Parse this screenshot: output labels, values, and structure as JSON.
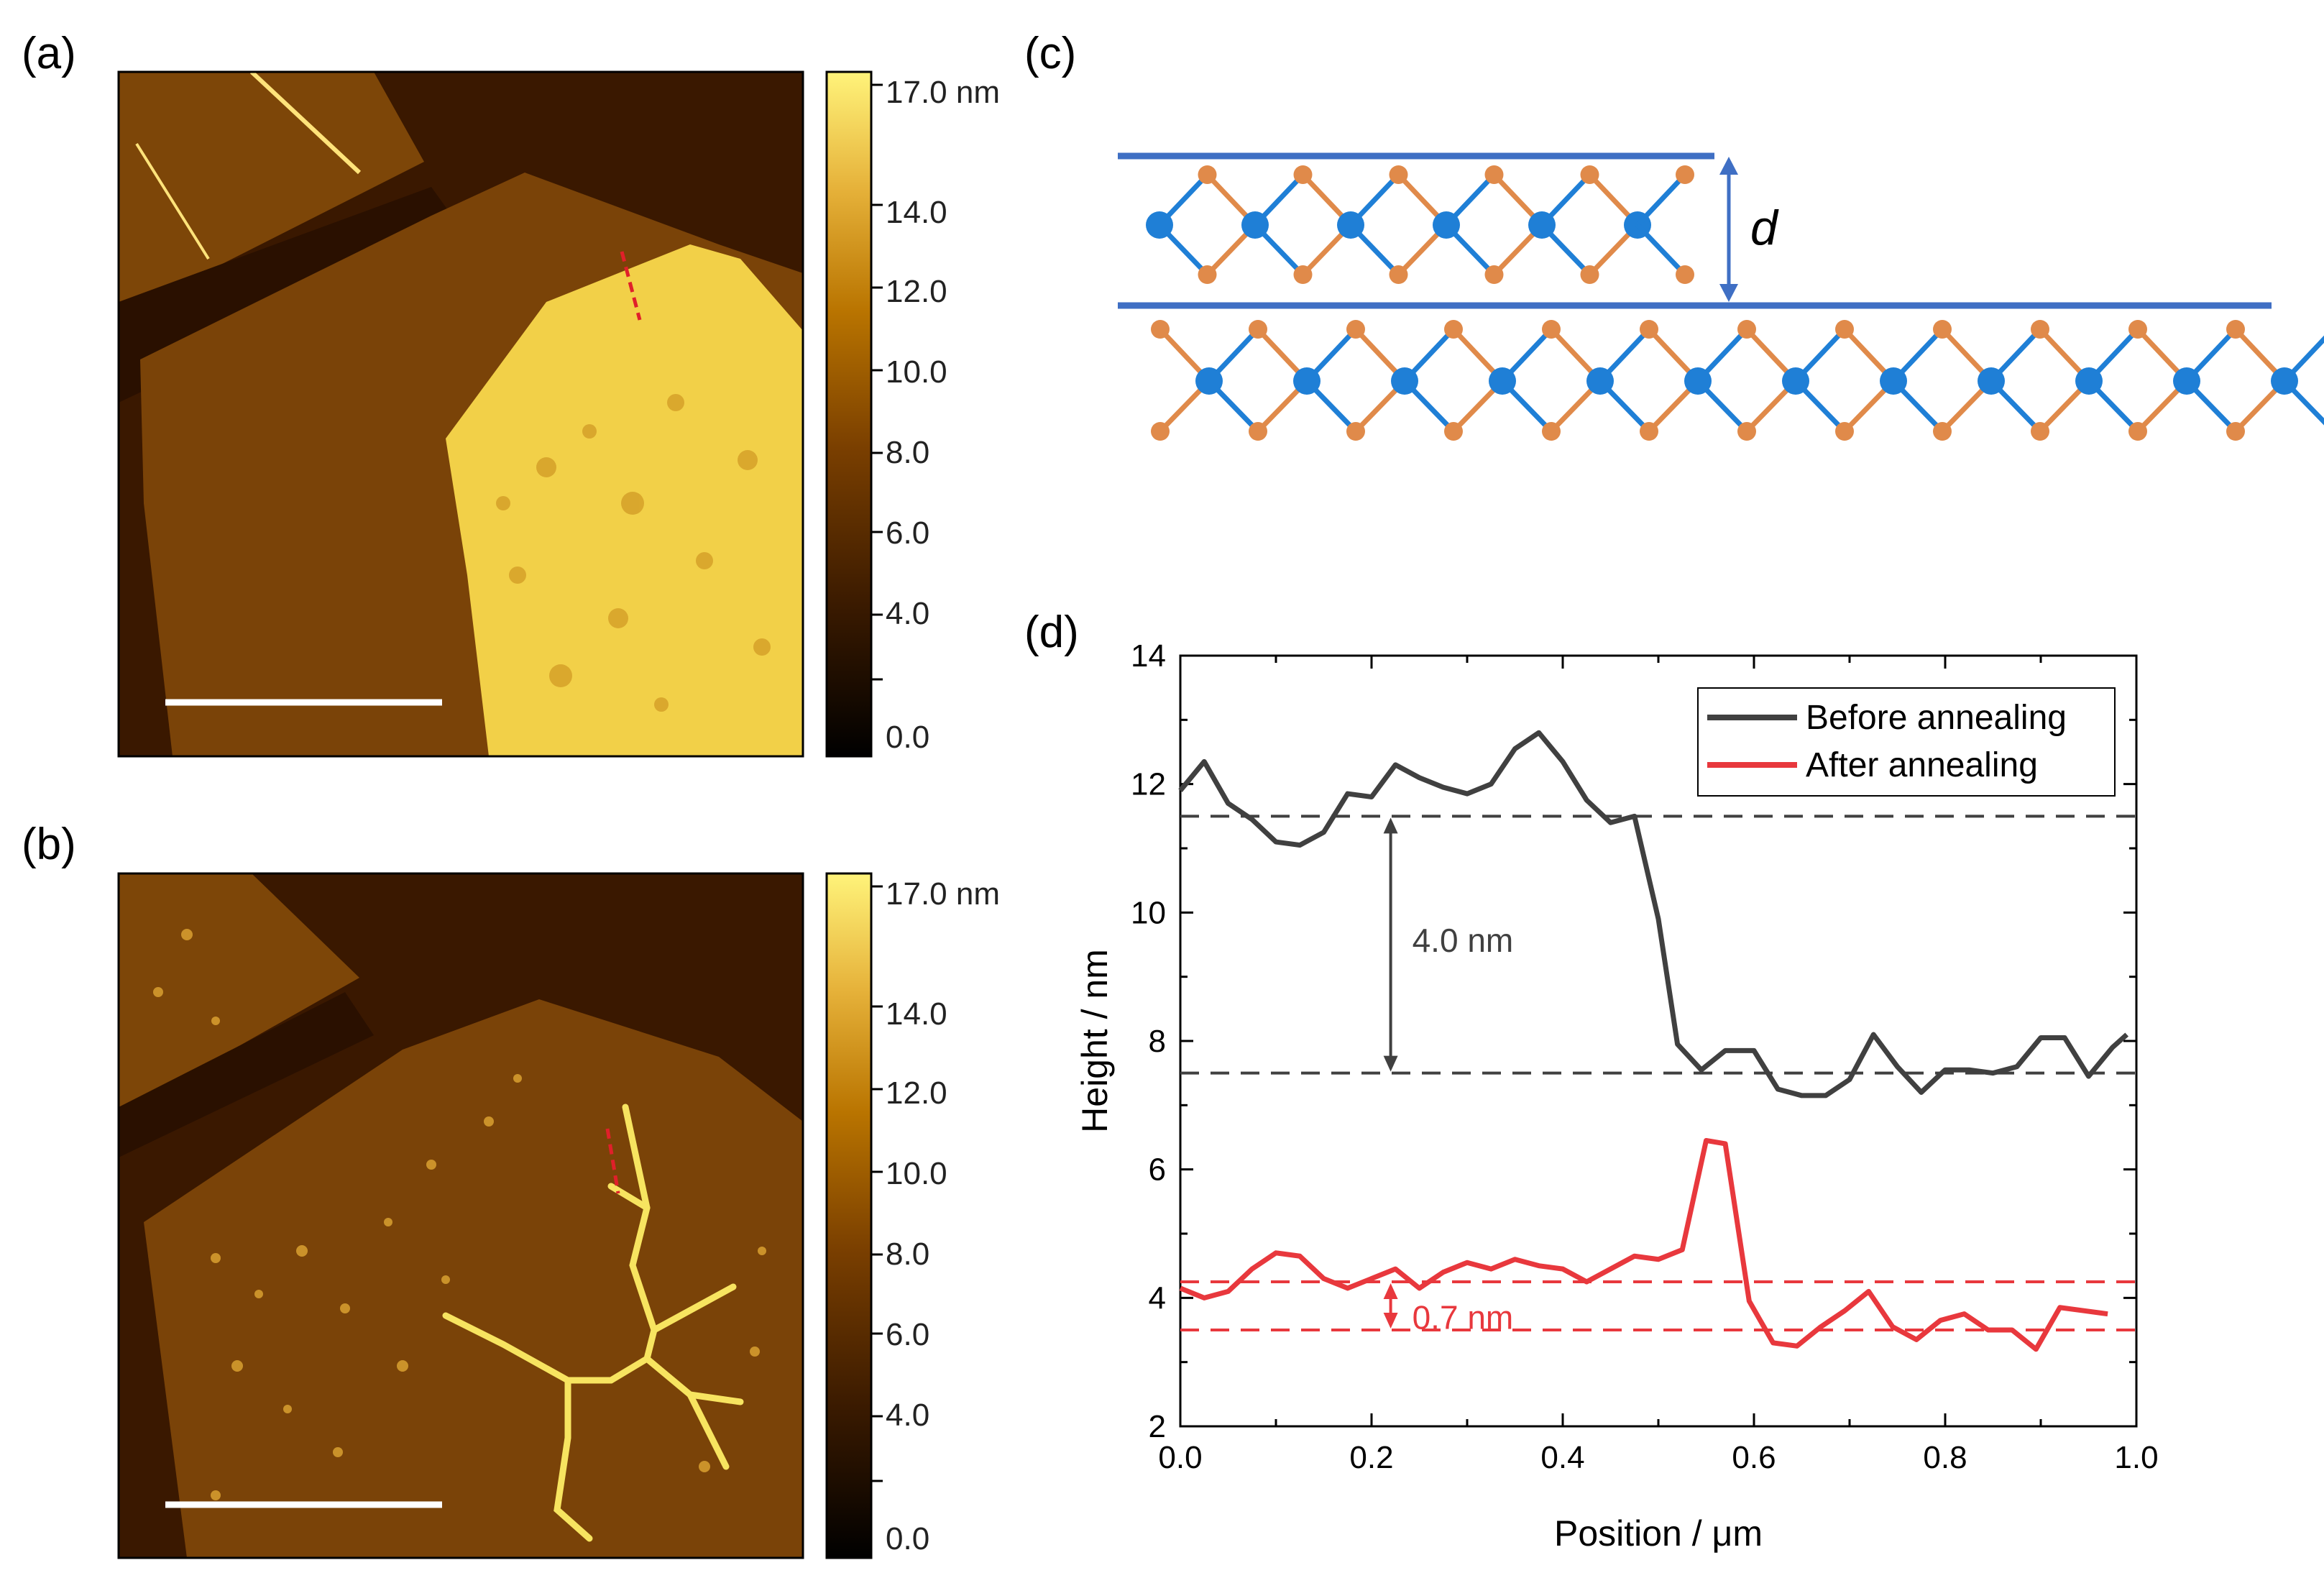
{
  "panels": {
    "a": "(a)",
    "b": "(b)",
    "c": "(c)",
    "d": "(d)"
  },
  "colorbar": {
    "ticks": [
      "17.0 nm",
      "14.0",
      "12.0",
      "10.0",
      "8.0",
      "6.0",
      "4.0",
      "0.0"
    ],
    "colors": [
      "#000000",
      "#3a1a00",
      "#7a3f00",
      "#b97400",
      "#e6b23a",
      "#fff37a"
    ]
  },
  "structure": {
    "spacing_label": "d",
    "metal_color": "#1f7fd6",
    "chalcogen_color": "#e08a4a",
    "line_color": "#3f6fc4"
  },
  "afm_colors": {
    "background": "#3a1800",
    "flake": "#7a4308",
    "bright": "#f2d048",
    "scale_bar": "#ffffff",
    "profile_line": "#e0202a"
  },
  "chart_data": {
    "type": "line",
    "xlabel": "Position / μm",
    "ylabel": "Height / nm",
    "xlim": [
      0.0,
      1.0
    ],
    "ylim": [
      2,
      14
    ],
    "xticks": [
      "0.0",
      "0.2",
      "0.4",
      "0.6",
      "0.8",
      "1.0"
    ],
    "yticks": [
      "2",
      "4",
      "6",
      "8",
      "10",
      "12",
      "14"
    ],
    "legend_position": "top-right",
    "series": [
      {
        "name": "Before annealing",
        "color": "#404040",
        "x": [
          0.0,
          0.025,
          0.05,
          0.075,
          0.1,
          0.125,
          0.15,
          0.175,
          0.2,
          0.225,
          0.25,
          0.275,
          0.3,
          0.325,
          0.35,
          0.375,
          0.4,
          0.425,
          0.45,
          0.475,
          0.5,
          0.52,
          0.545,
          0.57,
          0.6,
          0.625,
          0.65,
          0.675,
          0.7,
          0.725,
          0.75,
          0.775,
          0.8,
          0.825,
          0.85,
          0.875,
          0.9,
          0.925,
          0.95,
          0.975,
          0.99
        ],
        "values": [
          11.9,
          12.35,
          11.7,
          11.45,
          11.1,
          11.05,
          11.25,
          11.85,
          11.8,
          12.3,
          12.1,
          11.95,
          11.85,
          12.0,
          12.55,
          12.8,
          12.35,
          11.75,
          11.4,
          11.5,
          9.9,
          7.95,
          7.55,
          7.85,
          7.85,
          7.25,
          7.15,
          7.15,
          7.4,
          8.1,
          7.6,
          7.2,
          7.55,
          7.55,
          7.5,
          7.6,
          8.05,
          8.05,
          7.45,
          7.9,
          8.1
        ]
      },
      {
        "name": "After annealing",
        "color": "#e8383d",
        "x": [
          0.0,
          0.025,
          0.05,
          0.075,
          0.1,
          0.125,
          0.15,
          0.175,
          0.2,
          0.225,
          0.25,
          0.275,
          0.3,
          0.325,
          0.35,
          0.375,
          0.4,
          0.425,
          0.45,
          0.475,
          0.5,
          0.525,
          0.55,
          0.57,
          0.595,
          0.62,
          0.645,
          0.67,
          0.695,
          0.72,
          0.745,
          0.77,
          0.795,
          0.82,
          0.845,
          0.87,
          0.895,
          0.92,
          0.945,
          0.97
        ],
        "values": [
          4.15,
          4.0,
          4.1,
          4.45,
          4.7,
          4.65,
          4.3,
          4.15,
          4.3,
          4.45,
          4.15,
          4.4,
          4.55,
          4.45,
          4.6,
          4.5,
          4.45,
          4.25,
          4.45,
          4.65,
          4.6,
          4.75,
          6.45,
          6.4,
          3.95,
          3.3,
          3.25,
          3.55,
          3.8,
          4.1,
          3.55,
          3.35,
          3.65,
          3.75,
          3.5,
          3.5,
          3.2,
          3.85,
          3.8,
          3.75
        ]
      }
    ],
    "reference_lines": [
      {
        "y": 11.5,
        "color": "#404040"
      },
      {
        "y": 7.5,
        "color": "#404040"
      },
      {
        "y": 4.25,
        "color": "#e8383d"
      },
      {
        "y": 3.5,
        "color": "#e8383d"
      }
    ],
    "annotations": [
      {
        "text": "4.0 nm",
        "from": 11.5,
        "to": 7.5,
        "x": 0.22,
        "color": "#404040"
      },
      {
        "text": "0.7 nm",
        "from": 4.25,
        "to": 3.5,
        "x": 0.22,
        "color": "#e8383d"
      }
    ]
  }
}
